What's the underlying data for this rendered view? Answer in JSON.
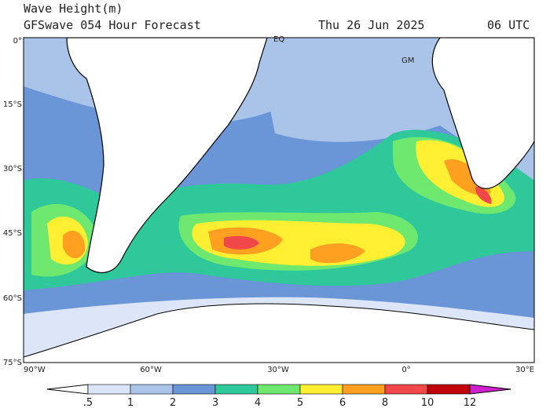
{
  "header": {
    "title": "Wave Height(m)",
    "subtitle": "GFSwave 054 Hour Forecast",
    "date": "Thu 26 Jun 2025",
    "time": "06 UTC"
  },
  "lat_labels": [
    "0°",
    "15°S",
    "30°S",
    "45°S",
    "60°S",
    "75°S"
  ],
  "lon_labels": [
    "90°W",
    "60°W",
    "30°W",
    "0°",
    "30°E"
  ],
  "map_labels": [
    "EQ",
    "GM"
  ],
  "colorbar": {
    "labels": [
      ".5",
      "1",
      "2",
      "3",
      "4",
      "5",
      "6",
      "8",
      "10",
      "12"
    ],
    "colors": [
      "#ffffff",
      "#dce6f8",
      "#a9c4e8",
      "#6a95d6",
      "#2ec89a",
      "#6fe86f",
      "#ffef33",
      "#ffa020",
      "#f04848",
      "#c00000",
      "#d020d0"
    ]
  }
}
